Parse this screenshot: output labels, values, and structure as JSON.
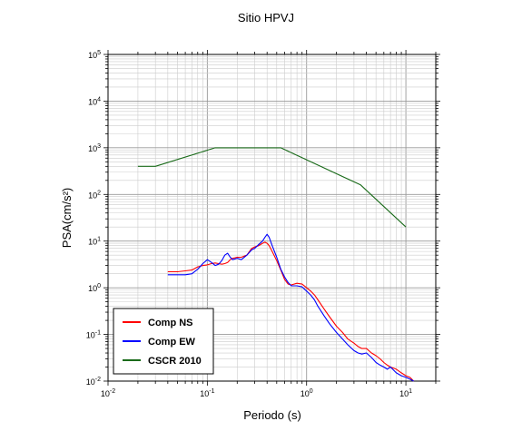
{
  "chart_data": {
    "type": "line",
    "title": "Sitio HPVJ",
    "xlabel": "Periodo (s)",
    "ylabel": "PSA(cm/s²)",
    "xscale": "log",
    "yscale": "log",
    "xlim": [
      0.01,
      20
    ],
    "ylim": [
      0.01,
      100000
    ],
    "xticks": [
      {
        "base": "10",
        "exp": "-2",
        "value": 0.01
      },
      {
        "base": "10",
        "exp": "-1",
        "value": 0.1
      },
      {
        "base": "10",
        "exp": "0",
        "value": 1
      },
      {
        "base": "10",
        "exp": "1",
        "value": 10
      }
    ],
    "yticks": [
      {
        "base": "10",
        "exp": "-2",
        "value": 0.01
      },
      {
        "base": "10",
        "exp": "-1",
        "value": 0.1
      },
      {
        "base": "10",
        "exp": "0",
        "value": 1
      },
      {
        "base": "10",
        "exp": "1",
        "value": 10
      },
      {
        "base": "10",
        "exp": "2",
        "value": 100
      },
      {
        "base": "10",
        "exp": "3",
        "value": 1000
      },
      {
        "base": "10",
        "exp": "4",
        "value": 10000
      },
      {
        "base": "10",
        "exp": "5",
        "value": 100000
      }
    ],
    "grid": true,
    "legend_position": "bottom-left",
    "series": [
      {
        "name": "Comp NS",
        "color": "#ff0000",
        "x": [
          0.04,
          0.05,
          0.06,
          0.07,
          0.08,
          0.09,
          0.1,
          0.11,
          0.12,
          0.13,
          0.14,
          0.15,
          0.16,
          0.17,
          0.18,
          0.2,
          0.22,
          0.25,
          0.28,
          0.3,
          0.33,
          0.36,
          0.38,
          0.4,
          0.42,
          0.45,
          0.5,
          0.55,
          0.6,
          0.65,
          0.7,
          0.8,
          0.9,
          1.0,
          1.1,
          1.2,
          1.3,
          1.5,
          1.7,
          2.0,
          2.3,
          2.6,
          3.0,
          3.3,
          3.6,
          4.0,
          4.5,
          5.0,
          5.5,
          6.0,
          6.5,
          7.0,
          8.0,
          9.0,
          10.0,
          11.0,
          12.0
        ],
        "y": [
          2.2,
          2.2,
          2.3,
          2.4,
          2.8,
          3.0,
          3.1,
          3.3,
          3.4,
          3.3,
          3.2,
          3.3,
          3.5,
          4.0,
          4.3,
          4.5,
          4.5,
          5.0,
          7.0,
          7.5,
          8.0,
          9.0,
          9.5,
          9.0,
          8.0,
          6.0,
          3.8,
          2.4,
          1.5,
          1.2,
          1.15,
          1.25,
          1.2,
          1.0,
          0.85,
          0.7,
          0.55,
          0.35,
          0.24,
          0.15,
          0.11,
          0.08,
          0.065,
          0.055,
          0.05,
          0.05,
          0.04,
          0.035,
          0.03,
          0.025,
          0.022,
          0.02,
          0.018,
          0.015,
          0.013,
          0.012,
          0.01
        ]
      },
      {
        "name": "Comp EW",
        "color": "#0000ff",
        "x": [
          0.04,
          0.05,
          0.06,
          0.07,
          0.08,
          0.09,
          0.1,
          0.11,
          0.12,
          0.13,
          0.14,
          0.15,
          0.16,
          0.17,
          0.18,
          0.2,
          0.22,
          0.25,
          0.28,
          0.3,
          0.33,
          0.36,
          0.38,
          0.4,
          0.42,
          0.45,
          0.5,
          0.55,
          0.6,
          0.65,
          0.7,
          0.8,
          0.9,
          1.0,
          1.1,
          1.2,
          1.3,
          1.5,
          1.7,
          2.0,
          2.3,
          2.6,
          3.0,
          3.3,
          3.6,
          4.0,
          4.5,
          5.0,
          5.5,
          6.0,
          6.5,
          7.0,
          8.0,
          9.0,
          10.0,
          11.0,
          12.0
        ],
        "y": [
          1.9,
          1.9,
          1.9,
          2.0,
          2.5,
          3.3,
          4.0,
          3.5,
          3.0,
          3.2,
          3.8,
          5.0,
          5.5,
          4.5,
          4.0,
          4.3,
          4.0,
          5.0,
          6.5,
          7.0,
          8.5,
          10.0,
          12.0,
          14.0,
          12.0,
          8.0,
          4.5,
          2.5,
          1.7,
          1.3,
          1.1,
          1.1,
          1.05,
          0.85,
          0.7,
          0.55,
          0.4,
          0.25,
          0.17,
          0.11,
          0.08,
          0.06,
          0.045,
          0.04,
          0.038,
          0.04,
          0.032,
          0.025,
          0.022,
          0.02,
          0.018,
          0.02,
          0.015,
          0.013,
          0.012,
          0.011,
          0.01
        ]
      },
      {
        "name": "CSCR 2010",
        "color": "#1a6b1a",
        "x": [
          0.02,
          0.03,
          0.12,
          0.55,
          3.5,
          10.0
        ],
        "y": [
          400,
          400,
          1000,
          1000,
          160,
          20
        ]
      }
    ]
  }
}
